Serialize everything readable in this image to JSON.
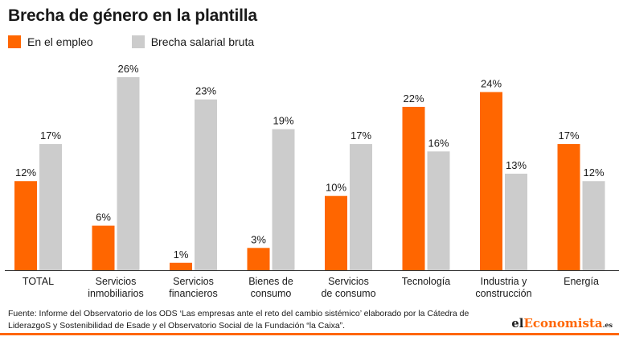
{
  "chart_data": {
    "type": "bar",
    "title": "Brecha de género en la plantilla",
    "categories": [
      [
        "TOTAL"
      ],
      [
        "Servicios",
        "inmobiliarios"
      ],
      [
        "Servicios",
        "financieros"
      ],
      [
        "Bienes de",
        "consumo"
      ],
      [
        "Servicios",
        "de consumo"
      ],
      [
        "Tecnología"
      ],
      [
        "Industria y",
        "construcción"
      ],
      [
        "Energía"
      ]
    ],
    "series": [
      {
        "name": "En el empleo",
        "color": "#ff6600",
        "values": [
          12,
          6,
          1,
          3,
          10,
          22,
          24,
          17
        ]
      },
      {
        "name": "Brecha salarial bruta",
        "color": "#cccccc",
        "values": [
          17,
          26,
          23,
          19,
          17,
          16,
          13,
          12
        ]
      }
    ],
    "value_suffix": "%",
    "ylim": [
      0,
      26
    ],
    "grid": false,
    "legend": "top-left"
  },
  "source": "Fuente: Informe del Observatorio de los ODS ‘Las empresas ante el reto del cambio sistémico’ elaborado por la Cátedra de LiderazgoS y Sostenibilidad de Esade y el Observatorio Social de la Fundación “la Caixa”.",
  "logo": {
    "part1": "el",
    "part2": "Economista",
    "part3": ".es"
  }
}
